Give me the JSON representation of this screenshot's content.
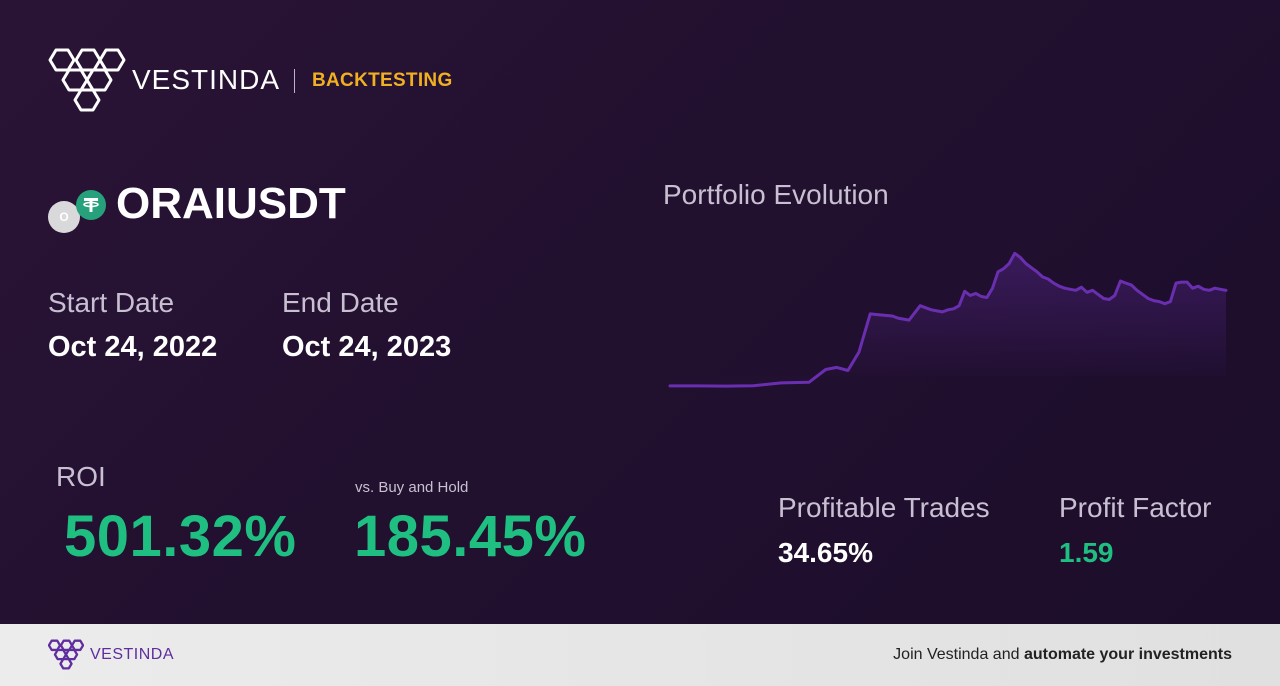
{
  "header": {
    "brand": "VESTINDA",
    "section": "BACKTESTING",
    "logo_icon": "hexagon-cluster-logo-icon"
  },
  "asset": {
    "pair": "ORAIUSDT",
    "base_icon": "orai-coin-icon",
    "base_icon_letter": "O",
    "quote_icon": "tether-coin-icon",
    "quote_icon_letter": "₮"
  },
  "dates": {
    "start_label": "Start Date",
    "start_value": "Oct 24, 2022",
    "end_label": "End Date",
    "end_value": "Oct 24, 2023"
  },
  "metrics": {
    "roi_label": "ROI",
    "roi_value": "501.32%",
    "vs_label": "vs. Buy and Hold",
    "vs_value": "185.45%",
    "profitable_label": "Profitable Trades",
    "profitable_value": "34.65%",
    "factor_label": "Profit Factor",
    "factor_value": "1.59"
  },
  "chart_data": {
    "type": "area",
    "title": "Portfolio Evolution",
    "xlabel": "",
    "ylabel": "",
    "grid": false,
    "legend": "none",
    "x": [
      0,
      5,
      10,
      15,
      20,
      25,
      28,
      30,
      32,
      34,
      36,
      38,
      40,
      41,
      42,
      43,
      45,
      46,
      47,
      48,
      49,
      50,
      51,
      52,
      53,
      54,
      55,
      56,
      57,
      58,
      59,
      60,
      61,
      62,
      63,
      64,
      65,
      66,
      67,
      68,
      69,
      70,
      71,
      72,
      73,
      74,
      75,
      76,
      77,
      78,
      79,
      80,
      81,
      82,
      83,
      84,
      85,
      86,
      87,
      88,
      89,
      90,
      91,
      92,
      93,
      94,
      95,
      96,
      97,
      98,
      99,
      100
    ],
    "values": [
      2,
      2,
      1.8,
      2.2,
      5,
      5.5,
      18,
      20,
      17,
      35,
      72,
      71,
      70,
      68,
      67,
      66,
      80,
      78,
      76,
      75,
      74,
      76,
      77,
      80,
      94,
      90,
      92,
      89,
      88,
      97,
      113,
      116,
      121,
      131,
      127,
      121,
      117,
      113,
      108,
      106,
      102,
      99,
      97,
      96,
      95,
      98,
      93,
      95,
      91,
      87,
      86,
      90,
      104,
      102,
      100,
      95,
      91,
      87,
      85,
      84,
      82,
      84,
      102,
      103,
      103,
      97,
      99,
      96,
      95,
      97,
      96,
      95
    ],
    "ylim": [
      0,
      140
    ],
    "line_color": "#6a2fb0"
  },
  "footer": {
    "brand": "VESTINDA",
    "logo_icon": "hexagon-cluster-logo-icon",
    "cta_prefix": "Join Vestinda and ",
    "cta_strong": "automate your investments"
  }
}
